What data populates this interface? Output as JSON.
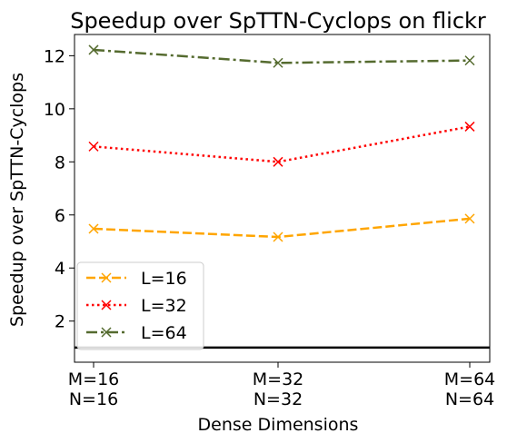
{
  "chart_data": {
    "type": "line",
    "title": "Speedup over SpTTN-Cyclops on flickr",
    "xlabel": "Dense Dimensions",
    "ylabel": "Speedup over SpTTN-Cyclops",
    "categories": [
      [
        "M=16",
        "N=16"
      ],
      [
        "M=32",
        "N=32"
      ],
      [
        "M=64",
        "N=64"
      ]
    ],
    "ylim": [
      0.45,
      12.8
    ],
    "yticks": [
      2,
      4,
      6,
      8,
      10,
      12
    ],
    "reference_line": {
      "y": 1,
      "color": "#000000"
    },
    "grid": false,
    "legend_position": "lower-left",
    "series": [
      {
        "name": "L=16",
        "values": [
          5.48,
          5.17,
          5.86
        ],
        "color": "#ffa500",
        "dash": "dashed",
        "marker": "x"
      },
      {
        "name": "L=32",
        "values": [
          8.58,
          8.0,
          9.33
        ],
        "color": "#ff0000",
        "dash": "dotted",
        "marker": "x"
      },
      {
        "name": "L=64",
        "values": [
          12.22,
          11.73,
          11.82
        ],
        "color": "#556b2f",
        "dash": "dashdot",
        "marker": "x"
      }
    ]
  }
}
